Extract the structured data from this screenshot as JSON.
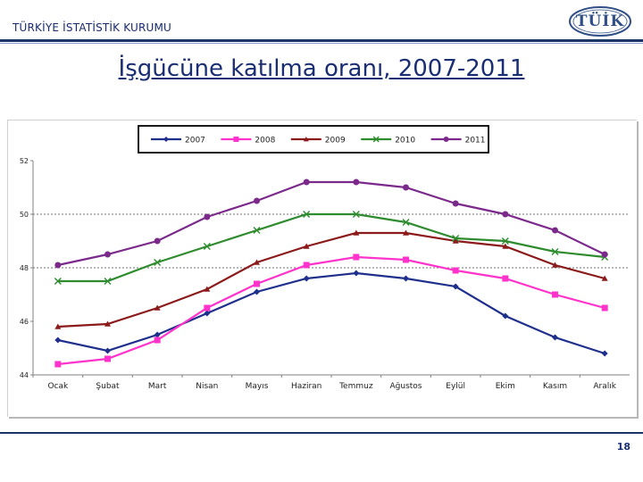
{
  "header": {
    "org_name": "TÜRKİYE İSTATİSTİK KURUMU",
    "logo_text": "TÜİK"
  },
  "title": "İşgücüne katılma oranı, 2007-2011",
  "page_number": "18",
  "chart_data": {
    "type": "line",
    "title": "İşgücüne katılma oranı, 2007-2011",
    "xlabel": "",
    "ylabel": "",
    "categories": [
      "Ocak",
      "Şubat",
      "Mart",
      "Nisan",
      "Mayıs",
      "Haziran",
      "Temmuz",
      "Ağustos",
      "Eylül",
      "Ekim",
      "Kasım",
      "Aralık"
    ],
    "ylim": [
      44,
      52
    ],
    "yticks": [
      "44",
      "46",
      "48",
      "50",
      "52"
    ],
    "grid": "dashed at 48 and 50",
    "legend_position": "top-center",
    "series": [
      {
        "name": "2007",
        "color": "#1f2f8c",
        "marker": "diamond",
        "values": [
          45.3,
          44.9,
          45.5,
          46.3,
          47.1,
          47.6,
          47.8,
          47.6,
          47.3,
          46.2,
          45.4,
          44.8
        ]
      },
      {
        "name": "2008",
        "color": "#ff33cc",
        "marker": "square",
        "values": [
          44.4,
          44.6,
          45.3,
          46.5,
          47.4,
          48.1,
          48.4,
          48.3,
          47.9,
          47.6,
          47.0,
          46.5
        ]
      },
      {
        "name": "2009",
        "color": "#8b1a1a",
        "marker": "triangle",
        "values": [
          45.8,
          45.9,
          46.5,
          47.2,
          48.2,
          48.8,
          49.3,
          49.3,
          49.0,
          48.8,
          48.1,
          47.6
        ]
      },
      {
        "name": "2010",
        "color": "#2e8b2e",
        "marker": "x",
        "values": [
          47.5,
          47.5,
          48.2,
          48.8,
          49.4,
          50.0,
          50.0,
          49.7,
          49.1,
          49.0,
          48.6,
          48.4
        ]
      },
      {
        "name": "2011",
        "color": "#7b2a8c",
        "marker": "circle",
        "values": [
          48.1,
          48.5,
          49.0,
          49.9,
          50.5,
          51.2,
          51.2,
          51.0,
          50.4,
          50.0,
          49.4,
          48.5
        ]
      }
    ]
  }
}
